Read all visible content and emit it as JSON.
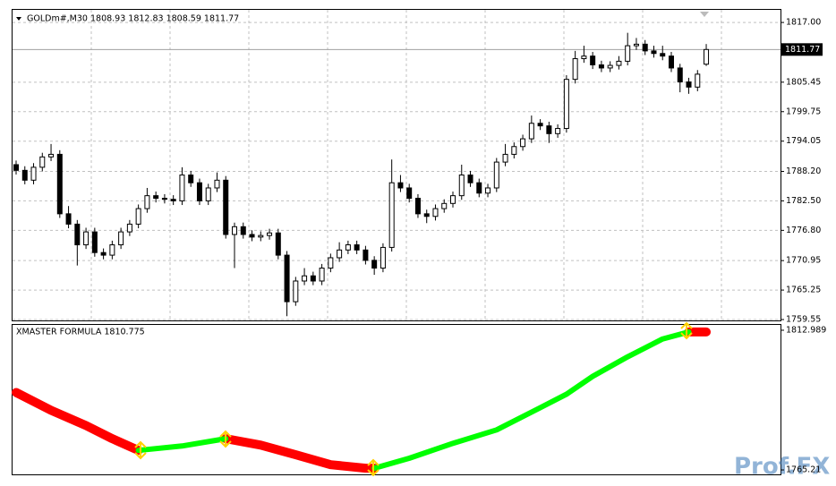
{
  "chart_data": [
    {
      "type": "candlestick",
      "title": "GOLDm#,M30  1808.93 1812.83 1808.59 1811.77",
      "open": [
        1789.5,
        1788.4,
        1786.5,
        1789,
        1791,
        1791.5,
        1780,
        1778,
        1774,
        1776.5,
        1772.5,
        1772,
        1774,
        1776.5,
        1778,
        1781,
        1783.5,
        1783,
        1782.8,
        1782.5,
        1787.5,
        1786,
        1782.5,
        1785,
        1786.5,
        1776,
        1777.5,
        1776,
        1775.5,
        1775.8,
        1776.3,
        1772,
        1763,
        1767,
        1768,
        1767,
        1769.5,
        1771.5,
        1773,
        1774,
        1773,
        1771,
        1769.5,
        1773.5,
        1786,
        1785,
        1783,
        1780,
        1779.5,
        1781,
        1782,
        1783.5,
        1787.5,
        1786,
        1784,
        1785,
        1790,
        1791.5,
        1793,
        1794.5,
        1797.5,
        1797,
        1795.5,
        1796.5,
        1806,
        1810,
        1810.5,
        1808.8,
        1808.2,
        1808.7,
        1809.5,
        1812.5,
        1812.8,
        1811.5,
        1811,
        1810.5,
        1808.2,
        1805.5,
        1804.5,
        1808.93
      ],
      "high": [
        1790.3,
        1789.2,
        1789.8,
        1791.8,
        1793.5,
        1792.3,
        1781.5,
        1778.8,
        1777.3,
        1777.3,
        1773.3,
        1774.8,
        1777.3,
        1778.8,
        1781.8,
        1785,
        1784.3,
        1783.8,
        1783.6,
        1789,
        1788.3,
        1786.8,
        1785.8,
        1788,
        1787.3,
        1778.3,
        1778.3,
        1776.8,
        1776.6,
        1777.1,
        1777.1,
        1772.8,
        1767.8,
        1769.5,
        1768.8,
        1770.3,
        1772.3,
        1774.5,
        1774.8,
        1774.8,
        1773.8,
        1771.8,
        1774.3,
        1790.5,
        1787.5,
        1785.8,
        1783.8,
        1780.8,
        1781.8,
        1782.8,
        1784.3,
        1789.5,
        1788.3,
        1786.8,
        1785.8,
        1790.8,
        1793.5,
        1793.8,
        1795.3,
        1799,
        1798.3,
        1797.8,
        1797.3,
        1806.8,
        1811.5,
        1812.5,
        1811.3,
        1809.6,
        1809.5,
        1810.5,
        1815,
        1814,
        1813.6,
        1812.5,
        1812.5,
        1811.3,
        1809,
        1806.3,
        1807.8,
        1812.83
      ],
      "low": [
        1787.6,
        1785.7,
        1785.7,
        1788.2,
        1790.2,
        1779.2,
        1777.2,
        1770,
        1773.2,
        1771.7,
        1771.2,
        1771.2,
        1773.2,
        1775.7,
        1777.2,
        1780.2,
        1782.2,
        1782,
        1781.7,
        1781.7,
        1785.2,
        1781.7,
        1781.7,
        1784.2,
        1775.2,
        1769.5,
        1775.2,
        1774.7,
        1774.7,
        1775,
        1771.2,
        1760.2,
        1762.2,
        1766.2,
        1766.2,
        1766.2,
        1768.7,
        1770.7,
        1772.2,
        1772.2,
        1770.2,
        1768.2,
        1768.7,
        1772.7,
        1784.2,
        1782.2,
        1779.2,
        1778.2,
        1778.7,
        1780.2,
        1781.2,
        1782.7,
        1785.2,
        1783.2,
        1783.2,
        1784.2,
        1789.2,
        1790.7,
        1792.2,
        1793.7,
        1796.2,
        1793.7,
        1794.7,
        1795.7,
        1805.2,
        1809.2,
        1808,
        1807.4,
        1807.4,
        1807.9,
        1808.7,
        1811.7,
        1810.7,
        1810.2,
        1809.7,
        1807.4,
        1803.5,
        1803.2,
        1803.7,
        1808.59
      ],
      "close": [
        1788.4,
        1786.5,
        1789,
        1791,
        1791.5,
        1780,
        1778,
        1774,
        1776.5,
        1772.5,
        1772,
        1774,
        1776.5,
        1778,
        1781,
        1783.5,
        1783,
        1782.8,
        1782.5,
        1787.5,
        1786,
        1782.5,
        1785,
        1786.5,
        1776,
        1777.5,
        1776,
        1775.5,
        1775.8,
        1776.3,
        1772,
        1763,
        1767,
        1768,
        1767,
        1769.5,
        1771.5,
        1773,
        1774,
        1773,
        1771,
        1769.5,
        1773.5,
        1786,
        1785,
        1783,
        1780,
        1779.5,
        1781,
        1782,
        1783.5,
        1787.5,
        1786,
        1784,
        1785,
        1790,
        1791.5,
        1793,
        1794.5,
        1797.5,
        1797,
        1795.5,
        1796.5,
        1806,
        1810,
        1810.5,
        1808.8,
        1808.2,
        1808.7,
        1809.5,
        1812.5,
        1812.8,
        1811.5,
        1811,
        1810.5,
        1808.2,
        1805.5,
        1804.5,
        1807,
        1811.77
      ],
      "color": "#000000",
      "ylim": [
        1759.38,
        1819.44
      ],
      "yticks": [
        {
          "value": 1817,
          "label": "1817.00"
        },
        {
          "value": 1805.45,
          "label": "1805.45"
        },
        {
          "value": 1799.75,
          "label": "1799.75"
        },
        {
          "value": 1794.05,
          "label": "1794.05"
        },
        {
          "value": 1788.2,
          "label": "1788.20"
        },
        {
          "value": 1782.5,
          "label": "1782.50"
        },
        {
          "value": 1776.8,
          "label": "1776.80"
        },
        {
          "value": 1770.95,
          "label": "1770.95"
        },
        {
          "value": 1765.25,
          "label": "1765.25"
        },
        {
          "value": 1759.55,
          "label": "1759.55"
        }
      ],
      "last_price": 1811.77,
      "grid": true
    },
    {
      "type": "line",
      "title": "XMASTER FORMULA 1810.775",
      "x": [
        0,
        4,
        8,
        11,
        14,
        19,
        24,
        28,
        32,
        36,
        40,
        41,
        45,
        50,
        55,
        60,
        63,
        66,
        70,
        74,
        77,
        79
      ],
      "series": [
        {
          "color": "#ff0000",
          "values": [
            1791.7,
            1785.6,
            1780.4,
            1775.9,
            1771.9,
            null,
            1775.9,
            1773.7,
            1770.4,
            1767,
            1765.8,
            1765.8,
            null,
            null,
            null,
            null,
            null,
            null,
            null,
            null,
            1812.4,
            1812.4
          ]
        },
        {
          "color": "#00ff00",
          "values": [
            null,
            null,
            null,
            null,
            1771.9,
            1773.4,
            1775.9,
            null,
            null,
            null,
            null,
            1765.8,
            1769.2,
            1774.3,
            1778.9,
            1786.5,
            1791.1,
            1797.2,
            1803.9,
            1810,
            1812.4,
            null
          ]
        }
      ],
      "ylim": [
        1763.69,
        1814.815
      ],
      "yticks": [
        1812.989,
        1765.21
      ]
    }
  ],
  "watermark": "Prof.FX"
}
